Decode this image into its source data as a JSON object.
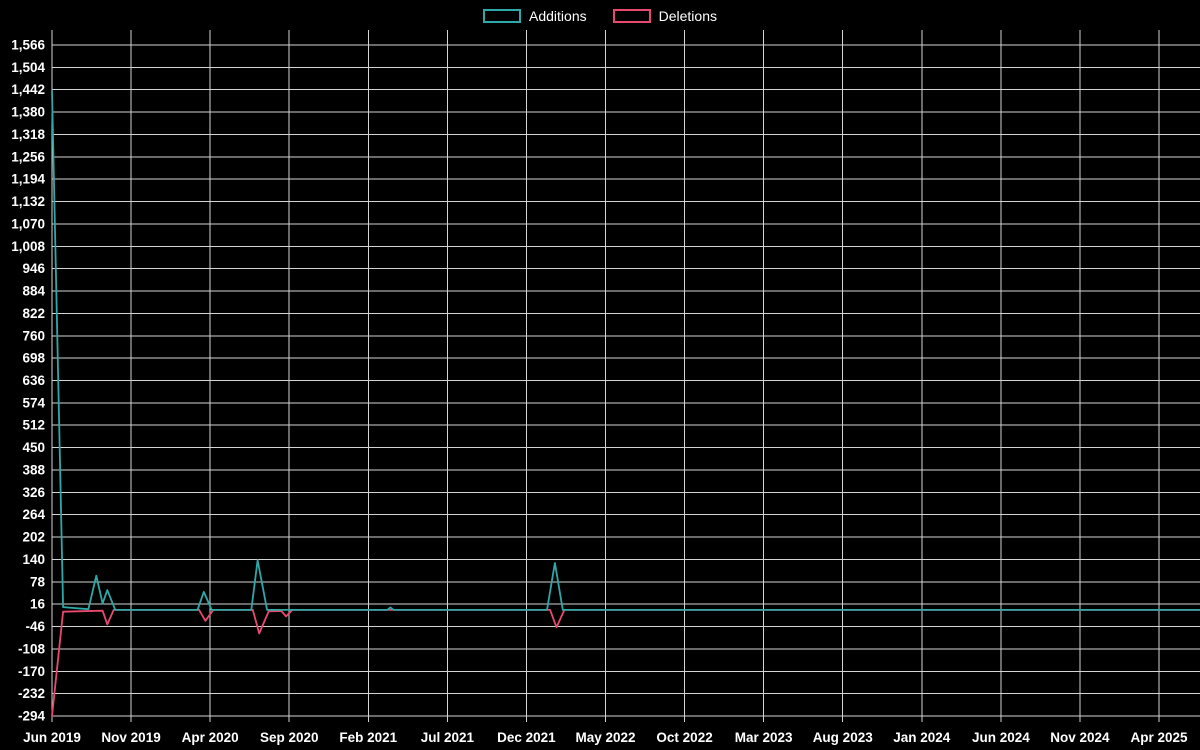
{
  "legend": {
    "additions_label": "Additions",
    "deletions_label": "Deletions"
  },
  "chart_data": {
    "type": "line",
    "title": "",
    "xlabel": "",
    "ylabel": "",
    "x_unit": "months since Jun 2019",
    "x_tick_labels": [
      "Jun 2019",
      "Nov 2019",
      "Apr 2020",
      "Sep 2020",
      "Feb 2021",
      "Jul 2021",
      "Dec 2021",
      "May 2022",
      "Oct 2022",
      "Mar 2023",
      "Aug 2023",
      "Jan 2024",
      "Jun 2024",
      "Nov 2024",
      "Apr 2025"
    ],
    "x_tick_positions": [
      0,
      5,
      10,
      15,
      20,
      25,
      30,
      35,
      40,
      45,
      50,
      55,
      60,
      65,
      70
    ],
    "x_max": 70,
    "y_min": -294,
    "y_max": 1566,
    "y_tick_step": 62,
    "grid": true,
    "legend_position": "top-center",
    "extend_series_to_right_edge": true,
    "colors": {
      "additions": "#2fa8a8",
      "deletions": "#e84a6f",
      "grid": "#d4d4d4",
      "background": "#000000",
      "text": "#ffffff"
    },
    "series": [
      {
        "name": "Additions",
        "color_key": "additions",
        "points": [
          [
            0,
            1440
          ],
          [
            0.7,
            8
          ],
          [
            2.3,
            2
          ],
          [
            2.8,
            95
          ],
          [
            3.2,
            18
          ],
          [
            3.5,
            55
          ],
          [
            4.0,
            0
          ],
          [
            9.2,
            0
          ],
          [
            9.6,
            50
          ],
          [
            10.1,
            0
          ],
          [
            12.6,
            0
          ],
          [
            13.0,
            138
          ],
          [
            13.6,
            0
          ],
          [
            21.2,
            0
          ],
          [
            21.4,
            7
          ],
          [
            21.6,
            0
          ],
          [
            31.3,
            0
          ],
          [
            31.8,
            130
          ],
          [
            32.3,
            0
          ],
          [
            70,
            0
          ]
        ]
      },
      {
        "name": "Deletions",
        "color_key": "deletions",
        "points": [
          [
            0,
            -294
          ],
          [
            0.7,
            -5
          ],
          [
            3.2,
            -2
          ],
          [
            3.5,
            -40
          ],
          [
            3.9,
            0
          ],
          [
            9.3,
            0
          ],
          [
            9.7,
            -30
          ],
          [
            10.2,
            0
          ],
          [
            12.7,
            0
          ],
          [
            13.1,
            -65
          ],
          [
            13.7,
            -4
          ],
          [
            14.5,
            -3
          ],
          [
            14.8,
            -18
          ],
          [
            15.2,
            0
          ],
          [
            31.5,
            0
          ],
          [
            31.9,
            -48
          ],
          [
            32.4,
            0
          ],
          [
            70,
            0
          ]
        ]
      }
    ]
  }
}
